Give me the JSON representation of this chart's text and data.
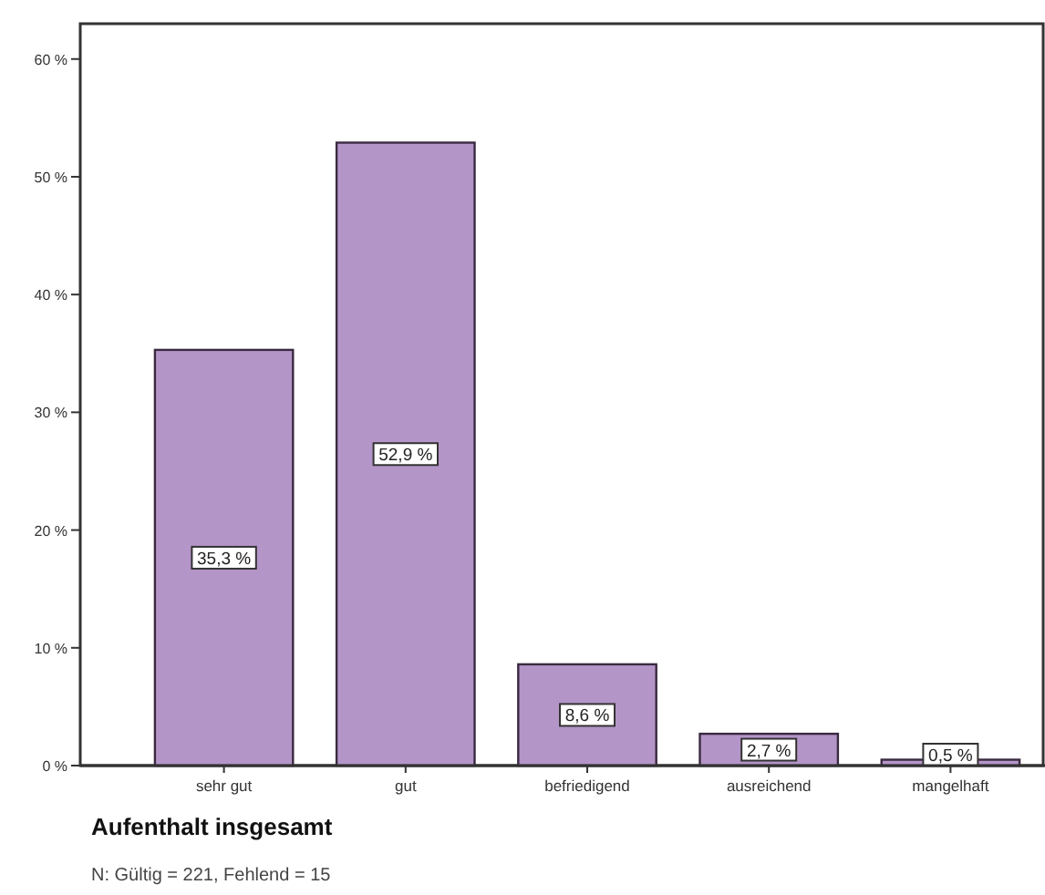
{
  "chart_data": {
    "type": "bar",
    "xlabel": "Aufenthalt insgesamt",
    "categories": [
      "sehr gut",
      "gut",
      "befriedigend",
      "ausreichend",
      "mangelhaft"
    ],
    "values": [
      35.3,
      52.9,
      8.6,
      2.7,
      0.5
    ],
    "value_labels": [
      "35,3 %",
      "52,9 %",
      "8,6 %",
      "2,7 %",
      "0,5 %"
    ],
    "color": "#b495c8",
    "ylim": [
      0,
      63
    ],
    "yticks": [
      {
        "value": 0,
        "label": "0 %"
      },
      {
        "value": 10,
        "label": "10 %"
      },
      {
        "value": 20,
        "label": "20 %"
      },
      {
        "value": 30,
        "label": "30 %"
      },
      {
        "value": 40,
        "label": "40 %"
      },
      {
        "value": 50,
        "label": "50 %"
      },
      {
        "value": 60,
        "label": "60 %"
      }
    ],
    "grid": false,
    "annotations": [
      "N: Gültig = 221, Fehlend = 15"
    ]
  }
}
